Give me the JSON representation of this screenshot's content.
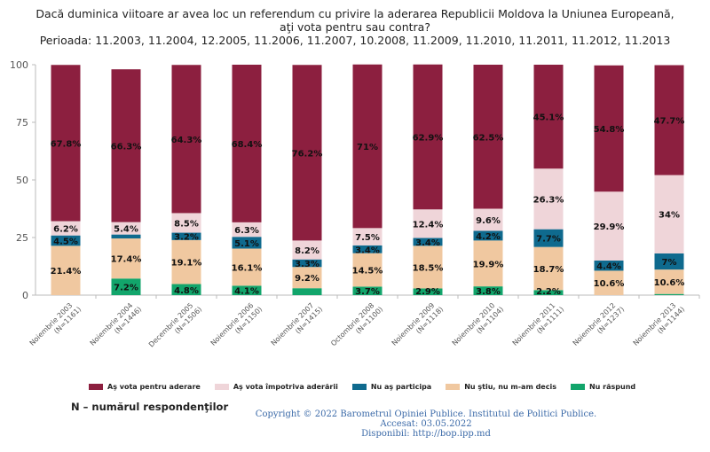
{
  "header": {
    "title_line1": "Dacă duminica viitoare ar avea loc un referendum cu privire la aderarea Republicii Moldova la Uniunea Europeană,",
    "title_line2": "aţi vota pentru sau contra?",
    "title_line3": "Perioada: 11.2003, 11.2004, 12.2005, 11.2006, 11.2007, 10.2008, 11.2009, 11.2010, 11.2011, 11.2012, 11.2013"
  },
  "chart_data": {
    "type": "bar",
    "stacked": true,
    "ylim": [
      0,
      100
    ],
    "yticks": [
      0,
      25,
      50,
      75,
      100
    ],
    "grid": false,
    "legend_position": "bottom",
    "categories": [
      [
        "Noiembrie 2003",
        "(N=1161)"
      ],
      [
        "Noiembrie 2004",
        "(N=1446)"
      ],
      [
        "Decembrie 2005",
        "(N=1506)"
      ],
      [
        "Noiembrie 2006",
        "(N=1150)"
      ],
      [
        "Noiembrie 2007",
        "(N=1415)"
      ],
      [
        "Octombrie 2008",
        "(N=1100)"
      ],
      [
        "Noiembrie 2009",
        "(N=1118)"
      ],
      [
        "Noiembrie 2010",
        "(N=1104)"
      ],
      [
        "Noiembrie 2011",
        "(N=1111)"
      ],
      [
        "Noiembrie 2012",
        "(N=1237)"
      ],
      [
        "Noiembrie 2013",
        "(N=1144)"
      ]
    ],
    "series": [
      {
        "name": "Nu răspund",
        "color": "#12a56b",
        "values": [
          0,
          7.2,
          4.8,
          4.1,
          3.0,
          3.7,
          2.9,
          3.8,
          2.2,
          0,
          0.5
        ],
        "labels": [
          "",
          "7.2%",
          "4.8%",
          "4.1%",
          "",
          "3.7%",
          "2.9%",
          "3.8%",
          "2.2%",
          "",
          ""
        ]
      },
      {
        "name": "Nu ştiu, nu m-am decis",
        "color": "#f0c8a0",
        "values": [
          21.4,
          17.4,
          19.1,
          16.1,
          9.2,
          14.5,
          18.5,
          19.9,
          18.7,
          10.6,
          10.6
        ],
        "labels": [
          "21.4%",
          "17.4%",
          "19.1%",
          "16.1%",
          "9.2%",
          "14.5%",
          "18.5%",
          "19.9%",
          "18.7%",
          "10.6%",
          "10.6%"
        ]
      },
      {
        "name": "Nu aş participa",
        "color": "#0f6a8e",
        "values": [
          4.5,
          1.7,
          3.2,
          5.1,
          3.3,
          3.4,
          3.4,
          4.2,
          7.7,
          4.4,
          7.0
        ],
        "labels": [
          "4.5%",
          "",
          "3.2%",
          "5.1%",
          "3.3%",
          "3.4%",
          "3.4%",
          "4.2%",
          "7.7%",
          "4.4%",
          "7%"
        ]
      },
      {
        "name": "Aş vota împotriva aderării",
        "color": "#efd5d9",
        "values": [
          6.2,
          5.4,
          8.5,
          6.3,
          8.2,
          7.5,
          12.4,
          9.6,
          26.3,
          29.9,
          34.0
        ],
        "labels": [
          "6.2%",
          "5.4%",
          "8.5%",
          "6.3%",
          "8.2%",
          "7.5%",
          "12.4%",
          "9.6%",
          "26.3%",
          "29.9%",
          "34%"
        ]
      },
      {
        "name": "Aş vota pentru aderare",
        "color": "#8c1f3f",
        "values": [
          67.8,
          66.3,
          64.3,
          68.4,
          76.2,
          71.0,
          62.9,
          62.5,
          45.1,
          54.8,
          47.7
        ],
        "labels": [
          "67.8%",
          "66.3%",
          "64.3%",
          "68.4%",
          "76.2%",
          "71%",
          "62.9%",
          "62.5%",
          "45.1%",
          "54.8%",
          "47.7%"
        ]
      }
    ],
    "legend_order": [
      4,
      3,
      2,
      1,
      0
    ]
  },
  "note": "N – numărul respondenţilor",
  "footer": {
    "line1": "Copyright © 2022 Barometrul Opiniei Publice. Institutul de Politici Publice.",
    "line2": "Accesat: 03.05.2022",
    "line3": "Disponibil: http://bop.ipp.md"
  }
}
